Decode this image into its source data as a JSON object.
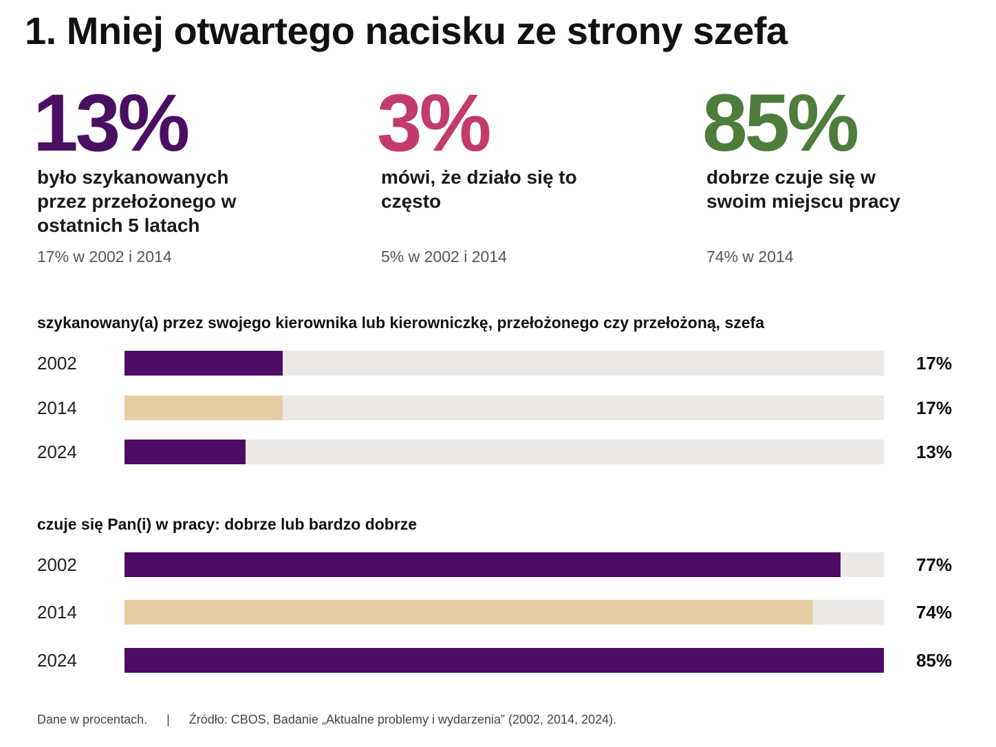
{
  "title": "1. Mniej otwartego nacisku ze strony szefa",
  "stats": [
    {
      "value": "13%",
      "color": "#4a0f63",
      "description": "było szykanowanych przez przełożonego w ostatnich 5 latach",
      "note": "17% w 2002 i 2014"
    },
    {
      "value": "3%",
      "color": "#c33a6c",
      "description": "mówi, że działo się to często",
      "note": "5% w 2002 i 2014"
    },
    {
      "value": "85%",
      "color": "#4d7d3a",
      "description": "dobrze czuje się w swoim miejscu pracy",
      "note": "74% w 2014"
    }
  ],
  "colors": {
    "primary": "#4e0b63",
    "highlight": "#e6cda4",
    "track": "#ece8e4"
  },
  "chart_data": [
    {
      "type": "bar",
      "orientation": "horizontal",
      "title": "szykanowany(a) przez swojego kierownika lub kierowniczkę, przełożonego czy przełożoną, szefa",
      "categories": [
        "2002",
        "2014",
        "2024"
      ],
      "values": [
        17,
        17,
        13
      ],
      "labels": [
        "17%",
        "17%",
        "13%"
      ],
      "xlim": [
        0,
        100
      ]
    },
    {
      "type": "bar",
      "orientation": "horizontal",
      "title": "czuje się Pan(i) w pracy: dobrze lub bardzo dobrze",
      "categories": [
        "2002",
        "2014",
        "2024"
      ],
      "values": [
        77,
        74,
        85
      ],
      "labels": [
        "77%",
        "74%",
        "85%"
      ],
      "xlim": [
        0,
        100
      ]
    }
  ],
  "footer": {
    "note": "Dane w procentach.",
    "separator": "|",
    "source": "Źródło: CBOS, Badanie „Aktualne problemy i wydarzenia” (2002, 2014, 2024)."
  }
}
